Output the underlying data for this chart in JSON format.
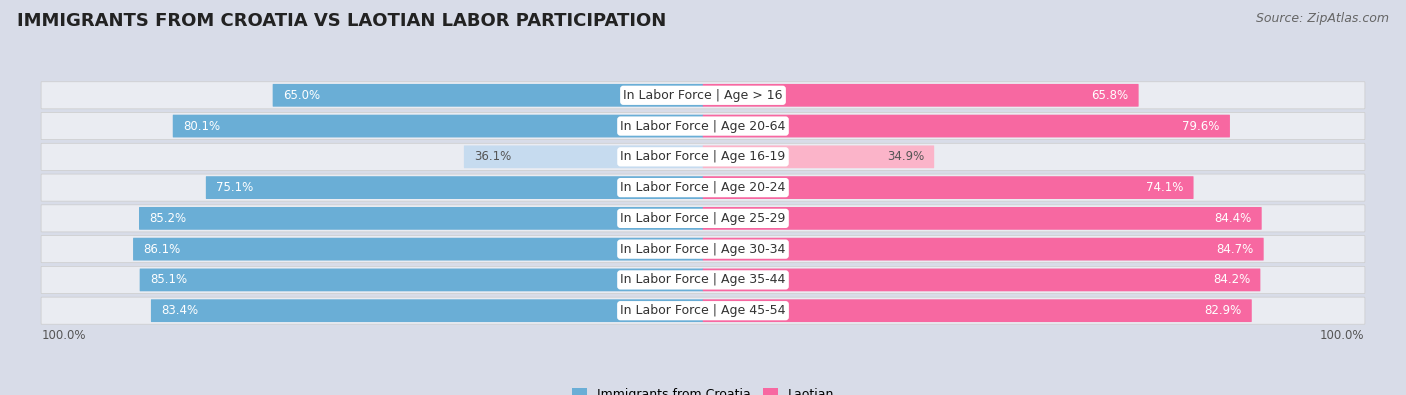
{
  "title": "IMMIGRANTS FROM CROATIA VS LAOTIAN LABOR PARTICIPATION",
  "source": "Source: ZipAtlas.com",
  "categories": [
    "In Labor Force | Age > 16",
    "In Labor Force | Age 20-64",
    "In Labor Force | Age 16-19",
    "In Labor Force | Age 20-24",
    "In Labor Force | Age 25-29",
    "In Labor Force | Age 30-34",
    "In Labor Force | Age 35-44",
    "In Labor Force | Age 45-54"
  ],
  "croatia_values": [
    65.0,
    80.1,
    36.1,
    75.1,
    85.2,
    86.1,
    85.1,
    83.4
  ],
  "laotian_values": [
    65.8,
    79.6,
    34.9,
    74.1,
    84.4,
    84.7,
    84.2,
    82.9
  ],
  "croatia_color_strong": "#6aaed6",
  "croatia_color_light": "#c6dbef",
  "laotian_color_strong": "#f768a1",
  "laotian_color_light": "#fbb4c9",
  "row_bg_color": "#e8eaf0",
  "background_color": "#d8dce8",
  "title_fontsize": 13,
  "source_fontsize": 9,
  "label_fontsize": 9,
  "value_fontsize": 8.5,
  "legend_fontsize": 9,
  "max_value": 100.0,
  "left_100_label": "100.0%",
  "right_100_label": "100.0%"
}
